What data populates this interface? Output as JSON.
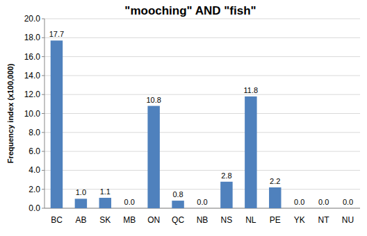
{
  "chart_data": {
    "type": "bar",
    "title": "\"mooching\" AND \"fish\"",
    "y_label": "Frequency index (x100,000)",
    "categories": [
      "BC",
      "AB",
      "SK",
      "MB",
      "ON",
      "QC",
      "NB",
      "NS",
      "NL",
      "PE",
      "YK",
      "NT",
      "NU"
    ],
    "values": [
      17.7,
      1.0,
      1.1,
      0.0,
      10.8,
      0.8,
      0.0,
      2.8,
      11.8,
      2.2,
      0.0,
      0.0,
      0.0
    ],
    "value_labels": [
      "17.7",
      "1.0",
      "1.1",
      "0.0",
      "10.8",
      "0.8",
      "0.0",
      "2.8",
      "11.8",
      "2.2",
      "0.0",
      "0.0",
      "0.0"
    ],
    "color": "#4f81bd",
    "ylim": [
      0,
      20
    ],
    "yticks": [
      {
        "value": 0,
        "label": "0.0"
      },
      {
        "value": 2,
        "label": "2.0"
      },
      {
        "value": 4,
        "label": "4.0"
      },
      {
        "value": 6,
        "label": "6.0"
      },
      {
        "value": 8,
        "label": "8.0"
      },
      {
        "value": 10,
        "label": "10.0"
      },
      {
        "value": 12,
        "label": "12.0"
      },
      {
        "value": 14,
        "label": "14.0"
      },
      {
        "value": 16,
        "label": "16.0"
      },
      {
        "value": 18,
        "label": "18.0"
      },
      {
        "value": 20,
        "label": "20.0"
      }
    ],
    "grid": true,
    "data_labels": true
  }
}
